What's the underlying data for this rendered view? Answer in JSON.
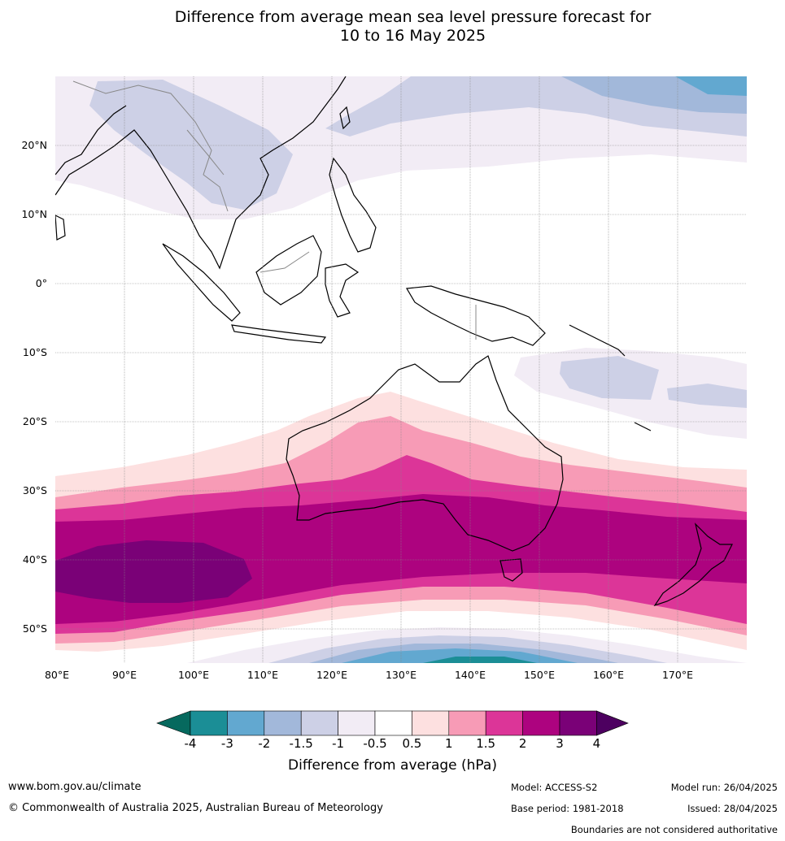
{
  "title": {
    "line1": "Difference from average mean sea level pressure forecast for",
    "line2": "10 to 16 May 2025"
  },
  "map": {
    "lat_labels": [
      "20°N",
      "10°N",
      "0°",
      "10°S",
      "20°S",
      "30°S",
      "40°S",
      "50°S"
    ],
    "lon_labels": [
      "80°E",
      "90°E",
      "100°E",
      "110°E",
      "120°E",
      "130°E",
      "140°E",
      "150°E",
      "160°E",
      "170°E"
    ]
  },
  "colorbar": {
    "ticks": [
      "-4",
      "-3",
      "-2",
      "-1.5",
      "-1",
      "-0.5",
      "0.5",
      "1",
      "1.5",
      "2",
      "3",
      "4"
    ],
    "colors": [
      "#1b8e96",
      "#62a8d0",
      "#a2b8da",
      "#cdd0e6",
      "#f2ecf5",
      "#ffffff",
      "#fde0e0",
      "#f79bb6",
      "#dc3598",
      "#ad037f",
      "#7a0177"
    ],
    "under_color": "#06695e",
    "over_color": "#4d0060",
    "title": "Difference from average (hPa)"
  },
  "footer": {
    "website": "www.bom.gov.au/climate",
    "copyright": "© Commonwealth of Australia 2025, Australian Bureau of Meteorology",
    "model": "Model: ACCESS-S2",
    "base_period": "Base period: 1981-2018",
    "model_run": "Model run: 26/04/2025",
    "issued": "Issued: 28/04/2025",
    "disclaimer": "Boundaries are not considered authoritative"
  }
}
